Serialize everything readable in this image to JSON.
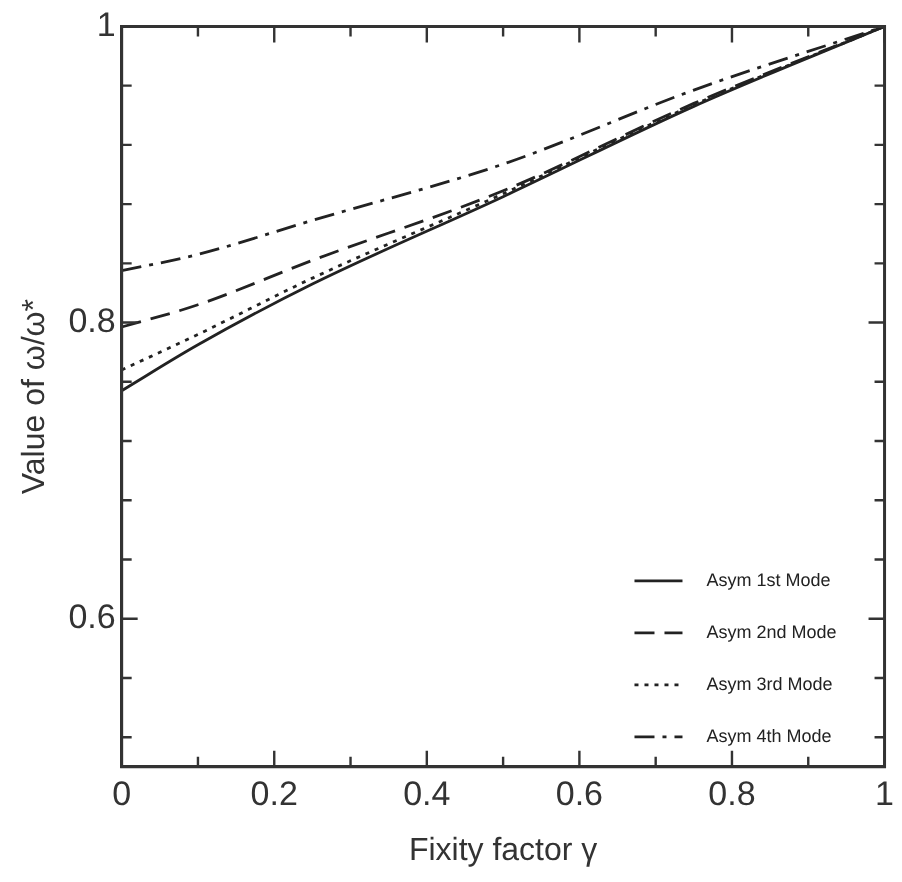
{
  "chart_data": {
    "type": "line",
    "xlabel": "Fixity factor γ",
    "ylabel": "Value of ω/ω*",
    "x": [
      0,
      0.1,
      0.25,
      0.5,
      0.75,
      1
    ],
    "xlim": [
      0,
      1
    ],
    "ylim": [
      0.5,
      1
    ],
    "xticks": [
      0,
      {
        "value": 0.1,
        "label": null
      },
      0.2,
      {
        "value": 0.3,
        "label": null
      },
      0.4,
      {
        "value": 0.5,
        "label": null
      },
      0.6,
      {
        "value": 0.7,
        "label": null
      },
      0.8,
      {
        "value": 0.9,
        "label": null
      },
      1
    ],
    "yticks": [
      {
        "value": 0.52,
        "label": null
      },
      {
        "value": 0.56,
        "label": null
      },
      0.6,
      {
        "value": 0.64,
        "label": null
      },
      {
        "value": 0.68,
        "label": null
      },
      {
        "value": 0.72,
        "label": null
      },
      {
        "value": 0.76,
        "label": null
      },
      0.8,
      {
        "value": 0.84,
        "label": null
      },
      {
        "value": 0.88,
        "label": null
      },
      {
        "value": 0.92,
        "label": null
      },
      {
        "value": 0.96,
        "label": null
      },
      1
    ],
    "grid": false,
    "legend": "bottom right",
    "marker": "none",
    "series": [
      {
        "name": "Asym 1st Mode",
        "color": "#222222",
        "line_style": "solid",
        "values": [
          0.754,
          0.785,
          0.826,
          0.885,
          0.946,
          1
        ]
      },
      {
        "name": "Asym 2nd Mode",
        "color": "#222222",
        "line_style": "dashed",
        "values": [
          0.797,
          0.812,
          0.842,
          0.889,
          0.948,
          1
        ]
      },
      {
        "name": "Asym 3rd Mode",
        "color": "#222222",
        "line_style": "dotted",
        "values": [
          0.768,
          0.792,
          0.83,
          0.887,
          0.947,
          1
        ]
      },
      {
        "name": "Asym 4th Mode",
        "color": "#222222",
        "line_style": "dashdot",
        "values": [
          0.835,
          0.846,
          0.869,
          0.907,
          0.957,
          1
        ]
      }
    ]
  }
}
